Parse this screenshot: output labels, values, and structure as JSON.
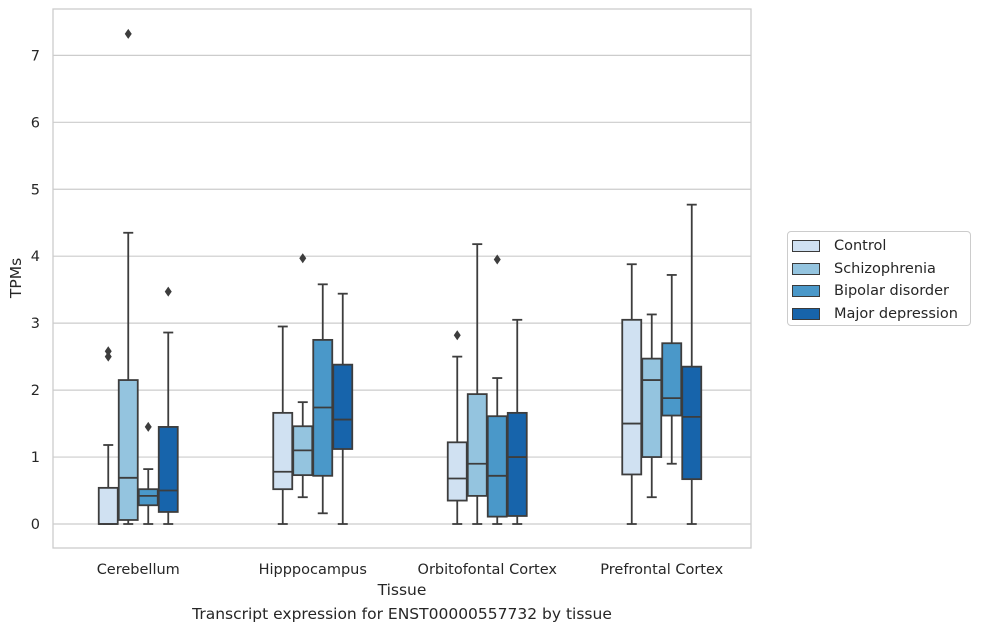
{
  "chart_data": {
    "type": "box",
    "xlabel": "Tissue",
    "ylabel": "TPMs",
    "caption": "Transcript expression for ENST00000557732 by tissue",
    "ylim": [
      -0.35,
      7.7
    ],
    "yticks": [
      0,
      1,
      2,
      3,
      4,
      5,
      6,
      7
    ],
    "grid": "horizontal",
    "legend_position": "right",
    "categories": [
      "Cerebellum",
      "Hipppocampus",
      "Orbitofontal Cortex",
      "Prefrontal Cortex"
    ],
    "series": [
      {
        "name": "Control",
        "color": "#d0e1f2",
        "boxes": [
          {
            "whisker_low": 0,
            "q1": 0,
            "median": 0,
            "q3": 0.54,
            "whisker_high": 1.18,
            "outliers": [
              2.5,
              2.58
            ]
          },
          {
            "whisker_low": 0,
            "q1": 0.52,
            "median": 0.78,
            "q3": 1.66,
            "whisker_high": 2.95,
            "outliers": []
          },
          {
            "whisker_low": 0,
            "q1": 0.35,
            "median": 0.68,
            "q3": 1.22,
            "whisker_high": 2.5,
            "outliers": [
              2.82
            ]
          },
          {
            "whisker_low": 0,
            "q1": 0.74,
            "median": 1.5,
            "q3": 3.05,
            "whisker_high": 3.88,
            "outliers": []
          }
        ]
      },
      {
        "name": "Schizophrenia",
        "color": "#94c4df",
        "boxes": [
          {
            "whisker_low": 0,
            "q1": 0.06,
            "median": 0.69,
            "q3": 2.15,
            "whisker_high": 4.35,
            "outliers": [
              7.32
            ]
          },
          {
            "whisker_low": 0.4,
            "q1": 0.73,
            "median": 1.1,
            "q3": 1.46,
            "whisker_high": 1.82,
            "outliers": [
              3.97
            ]
          },
          {
            "whisker_low": 0,
            "q1": 0.42,
            "median": 0.9,
            "q3": 1.94,
            "whisker_high": 4.18,
            "outliers": []
          },
          {
            "whisker_low": 0.4,
            "q1": 1.0,
            "median": 2.15,
            "q3": 2.47,
            "whisker_high": 3.13,
            "outliers": []
          }
        ]
      },
      {
        "name": "Bipolar disorder",
        "color": "#4a98c9",
        "boxes": [
          {
            "whisker_low": 0,
            "q1": 0.28,
            "median": 0.42,
            "q3": 0.52,
            "whisker_high": 0.82,
            "outliers": [
              1.45
            ]
          },
          {
            "whisker_low": 0.16,
            "q1": 0.72,
            "median": 1.74,
            "q3": 2.75,
            "whisker_high": 3.58,
            "outliers": []
          },
          {
            "whisker_low": 0,
            "q1": 0.11,
            "median": 0.72,
            "q3": 1.61,
            "whisker_high": 2.18,
            "outliers": [
              3.95
            ]
          },
          {
            "whisker_low": 0.9,
            "q1": 1.62,
            "median": 1.88,
            "q3": 2.7,
            "whisker_high": 3.72,
            "outliers": []
          }
        ]
      },
      {
        "name": "Major depression",
        "color": "#1764ab",
        "boxes": [
          {
            "whisker_low": 0,
            "q1": 0.18,
            "median": 0.5,
            "q3": 1.45,
            "whisker_high": 2.86,
            "outliers": [
              3.47
            ]
          },
          {
            "whisker_low": 0,
            "q1": 1.12,
            "median": 1.56,
            "q3": 2.38,
            "whisker_high": 3.44,
            "outliers": []
          },
          {
            "whisker_low": 0,
            "q1": 0.12,
            "median": 1.0,
            "q3": 1.66,
            "whisker_high": 3.05,
            "outliers": []
          },
          {
            "whisker_low": 0,
            "q1": 0.67,
            "median": 1.6,
            "q3": 2.35,
            "whisker_high": 4.77,
            "outliers": []
          }
        ]
      }
    ]
  }
}
